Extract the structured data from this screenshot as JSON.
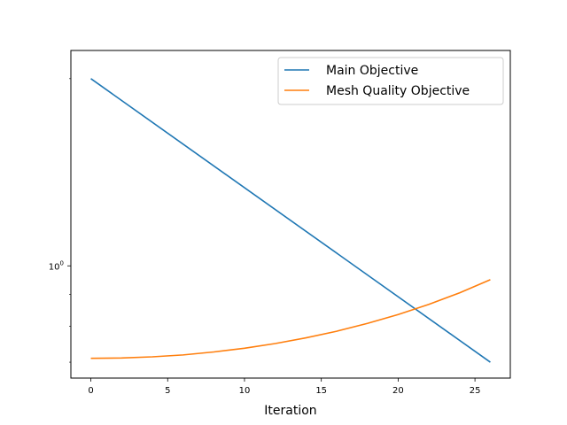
{
  "chart_data": {
    "type": "line",
    "title": "",
    "xlabel": "Iteration",
    "ylabel": "",
    "yscale": "log",
    "xlim": [
      -1.3,
      27.3
    ],
    "ylim": [
      0.66,
      2.22
    ],
    "xticks": [
      0,
      5,
      10,
      15,
      20,
      25
    ],
    "yticks": [
      {
        "value": 1.0,
        "base": "10",
        "exp": "0"
      }
    ],
    "grid": false,
    "legend_position": "upper-right",
    "series": [
      {
        "name": "Main Objective",
        "color": "#1f77b4",
        "x": [
          0,
          26
        ],
        "y": [
          2.0,
          0.7
        ]
      },
      {
        "name": "Mesh Quality Objective",
        "color": "#ff7f0e",
        "x": [
          0,
          2,
          4,
          6,
          8,
          10,
          12,
          14,
          16,
          18,
          20,
          22,
          24,
          26
        ],
        "y": [
          0.71,
          0.711,
          0.714,
          0.719,
          0.727,
          0.737,
          0.75,
          0.766,
          0.785,
          0.808,
          0.835,
          0.867,
          0.905,
          0.95
        ]
      }
    ]
  }
}
